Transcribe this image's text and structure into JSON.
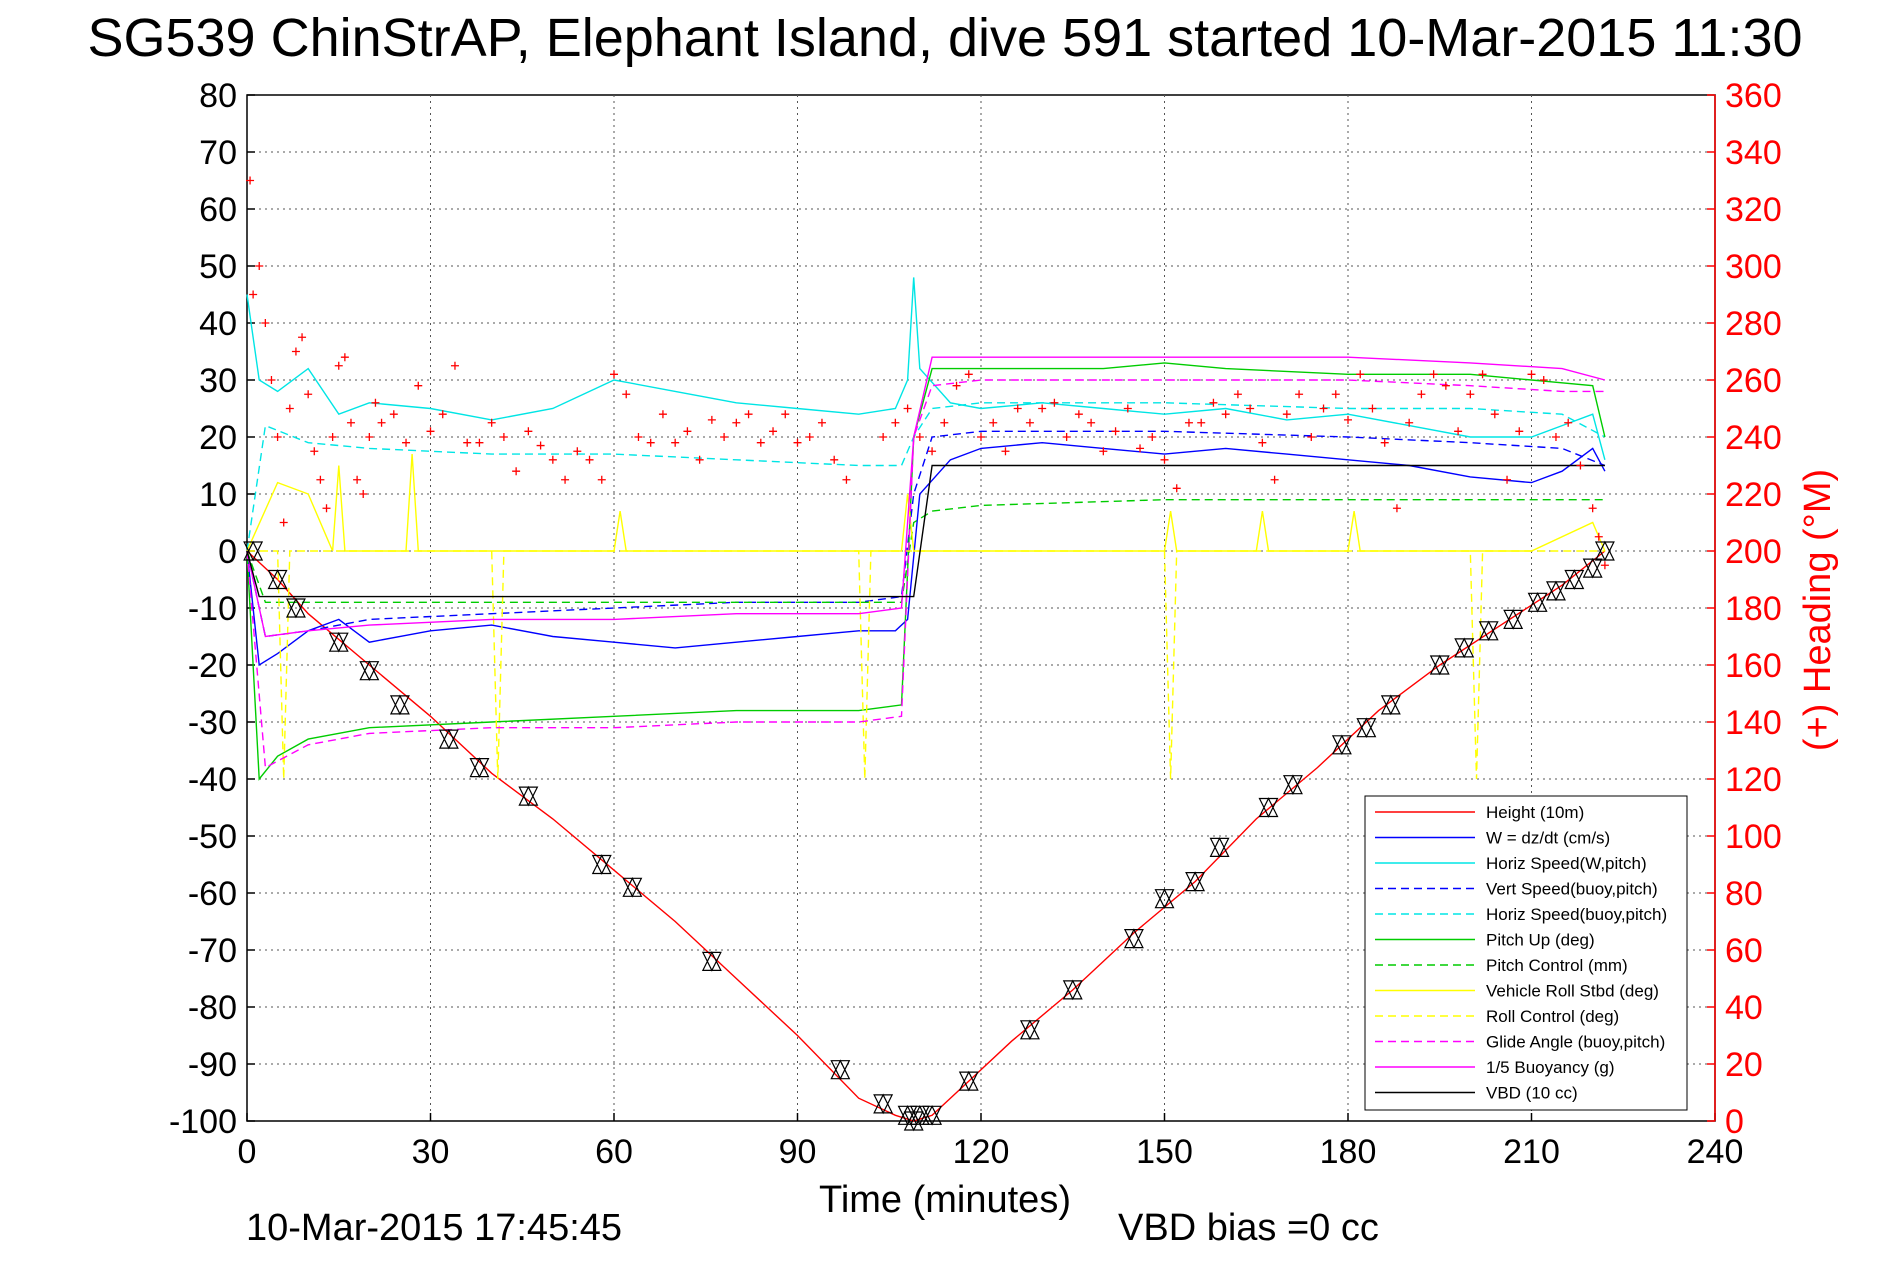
{
  "chart_data": {
    "type": "line",
    "title": "SG539 ChinStrAP, Elephant Island, dive 591 started 10-Mar-2015 11:30",
    "xlabel": "Time (minutes)",
    "ylabel": "",
    "ylabel_right": "(+) Heading (°M)",
    "xlim": [
      0,
      240
    ],
    "ylim": [
      -100,
      80
    ],
    "ylim_right": [
      0,
      360
    ],
    "x_ticks": [
      "0",
      "30",
      "60",
      "90",
      "120",
      "150",
      "180",
      "210",
      "240"
    ],
    "y_ticks": [
      "80",
      "70",
      "60",
      "50",
      "40",
      "30",
      "20",
      "10",
      "0",
      "-10",
      "-20",
      "-30",
      "-40",
      "-50",
      "-60",
      "-70",
      "-80",
      "-90",
      "-100"
    ],
    "y_ticks_right": [
      "360",
      "340",
      "320",
      "300",
      "280",
      "260",
      "240",
      "220",
      "200",
      "180",
      "160",
      "140",
      "120",
      "100",
      "80",
      "60",
      "40",
      "20",
      "0"
    ],
    "grid": true,
    "legend_position": "bottom-right",
    "footer_left": "10-Mar-2015 17:45:45",
    "footer_right": "VBD bias =0 cc",
    "series": [
      {
        "name": "Height (10m)",
        "color": "#ff0000",
        "style": "solid",
        "x": [
          0,
          5,
          10,
          20,
          30,
          40,
          50,
          60,
          70,
          80,
          90,
          100,
          106,
          109,
          112,
          118,
          125,
          135,
          145,
          155,
          165,
          175,
          185,
          195,
          205,
          215,
          222
        ],
        "y": [
          0,
          -5,
          -11,
          -20,
          -29,
          -39,
          -47,
          -56,
          -65,
          -75,
          -85,
          -96,
          -99,
          -100,
          -99,
          -93,
          -86,
          -77,
          -67,
          -58,
          -47,
          -38,
          -28,
          -20,
          -13,
          -6,
          0
        ]
      },
      {
        "name": "W = dz/dt (cm/s)",
        "color": "#0000ff",
        "style": "solid",
        "x": [
          0,
          2,
          5,
          10,
          15,
          20,
          30,
          40,
          50,
          60,
          70,
          80,
          90,
          100,
          106,
          108,
          110,
          115,
          120,
          130,
          140,
          150,
          160,
          170,
          180,
          190,
          200,
          210,
          215,
          220,
          222
        ],
        "y": [
          0,
          -20,
          -18,
          -14,
          -12,
          -16,
          -14,
          -13,
          -15,
          -16,
          -17,
          -16,
          -15,
          -14,
          -14,
          -12,
          10,
          16,
          18,
          19,
          18,
          17,
          18,
          17,
          16,
          15,
          13,
          12,
          14,
          18,
          14
        ]
      },
      {
        "name": "Horiz Speed(W,pitch)",
        "color": "#00e5e5",
        "style": "solid",
        "x": [
          0,
          2,
          5,
          10,
          15,
          20,
          30,
          40,
          50,
          60,
          70,
          80,
          90,
          100,
          106,
          108,
          109,
          110,
          115,
          120,
          130,
          140,
          150,
          160,
          170,
          180,
          190,
          200,
          210,
          215,
          220,
          222
        ],
        "y": [
          45,
          30,
          28,
          32,
          24,
          26,
          25,
          23,
          25,
          30,
          28,
          26,
          25,
          24,
          25,
          30,
          48,
          32,
          26,
          25,
          26,
          25,
          24,
          25,
          23,
          24,
          22,
          20,
          20,
          22,
          24,
          16
        ]
      },
      {
        "name": "Vert Speed(buoy,pitch)",
        "color": "#0000ff",
        "style": "dashed",
        "x": [
          0,
          3,
          10,
          20,
          40,
          60,
          80,
          100,
          107,
          109,
          112,
          120,
          150,
          180,
          200,
          215,
          222
        ],
        "y": [
          0,
          -15,
          -14,
          -12,
          -11,
          -10,
          -9,
          -9,
          -8,
          10,
          20,
          21,
          21,
          20,
          19,
          18,
          15
        ]
      },
      {
        "name": "Horiz Speed(buoy,pitch)",
        "color": "#00e5e5",
        "style": "dashed",
        "x": [
          0,
          3,
          10,
          20,
          40,
          60,
          80,
          100,
          107,
          109,
          112,
          120,
          150,
          180,
          200,
          215,
          222
        ],
        "y": [
          0,
          22,
          19,
          18,
          17,
          17,
          16,
          15,
          15,
          20,
          25,
          26,
          26,
          25,
          25,
          24,
          20
        ]
      },
      {
        "name": "Pitch Up (deg)",
        "color": "#00cc00",
        "style": "solid",
        "x": [
          0,
          2,
          5,
          10,
          20,
          40,
          60,
          80,
          100,
          107,
          109,
          112,
          120,
          140,
          150,
          160,
          180,
          200,
          210,
          220,
          222
        ],
        "y": [
          0,
          -40,
          -36,
          -33,
          -31,
          -30,
          -29,
          -28,
          -28,
          -27,
          20,
          32,
          32,
          32,
          33,
          32,
          31,
          31,
          30,
          29,
          20
        ]
      },
      {
        "name": "Pitch Control (mm)",
        "color": "#00cc00",
        "style": "dashed",
        "x": [
          0,
          3,
          10,
          40,
          80,
          107,
          109,
          112,
          120,
          150,
          180,
          210,
          222
        ],
        "y": [
          0,
          -9,
          -9,
          -9,
          -9,
          -9,
          5,
          7,
          8,
          9,
          9,
          9,
          9
        ]
      },
      {
        "name": "Vehicle Roll Stbd (deg)",
        "color": "#ffff00",
        "style": "solid",
        "x": [
          0,
          5,
          10,
          14,
          15,
          16,
          20,
          26,
          27,
          28,
          40,
          60,
          61,
          62,
          80,
          107,
          108,
          109,
          110,
          150,
          151,
          152,
          165,
          166,
          167,
          180,
          181,
          182,
          210,
          220,
          222
        ],
        "y": [
          0,
          12,
          10,
          0,
          15,
          0,
          0,
          0,
          17,
          0,
          0,
          0,
          7,
          0,
          0,
          0,
          10,
          0,
          0,
          0,
          7,
          0,
          0,
          7,
          0,
          0,
          7,
          0,
          0,
          5,
          0
        ]
      },
      {
        "name": "Roll Control (deg)",
        "color": "#ffff00",
        "style": "dashed",
        "x": [
          0,
          5,
          6,
          7,
          20,
          40,
          41,
          42,
          100,
          101,
          102,
          150,
          151,
          152,
          200,
          201,
          202,
          222
        ],
        "y": [
          0,
          0,
          -40,
          0,
          0,
          0,
          -40,
          0,
          0,
          -40,
          0,
          0,
          -40,
          0,
          0,
          -40,
          0,
          0
        ]
      },
      {
        "name": "Glide Angle (buoy,pitch)",
        "color": "#ff00ff",
        "style": "dashed",
        "x": [
          0,
          3,
          10,
          20,
          40,
          60,
          80,
          100,
          107,
          109,
          112,
          120,
          150,
          180,
          200,
          215,
          222
        ],
        "y": [
          0,
          -38,
          -34,
          -32,
          -31,
          -31,
          -30,
          -30,
          -29,
          20,
          29,
          30,
          30,
          30,
          29,
          28,
          28
        ]
      },
      {
        "name": "1/5 Buoyancy (g)",
        "color": "#ff00ff",
        "style": "solid",
        "x": [
          0,
          3,
          10,
          20,
          40,
          60,
          80,
          100,
          107,
          109,
          112,
          120,
          150,
          180,
          200,
          215,
          222
        ],
        "y": [
          0,
          -15,
          -14,
          -13,
          -12,
          -12,
          -11,
          -11,
          -10,
          20,
          34,
          34,
          34,
          34,
          33,
          32,
          30
        ]
      },
      {
        "name": "VBD (10 cc)",
        "color": "#000000",
        "style": "solid",
        "x": [
          0,
          2,
          107,
          109,
          112,
          222
        ],
        "y": [
          0,
          -8,
          -8,
          -8,
          15,
          15
        ]
      }
    ],
    "heading": {
      "color": "#ff0000",
      "marker": "+",
      "x": [
        0.5,
        1,
        2,
        3,
        4,
        5,
        6,
        7,
        8,
        9,
        10,
        11,
        12,
        13,
        14,
        15,
        16,
        17,
        18,
        19,
        20,
        21,
        22,
        24,
        26,
        28,
        30,
        32,
        34,
        36,
        38,
        40,
        42,
        44,
        46,
        48,
        50,
        52,
        54,
        56,
        58,
        60,
        62,
        64,
        66,
        68,
        70,
        72,
        74,
        76,
        78,
        80,
        82,
        84,
        86,
        88,
        90,
        92,
        94,
        96,
        98,
        104,
        106,
        108,
        110,
        112,
        114,
        116,
        118,
        120,
        122,
        124,
        126,
        128,
        130,
        132,
        134,
        136,
        138,
        140,
        142,
        144,
        146,
        148,
        150,
        152,
        154,
        156,
        158,
        160,
        162,
        164,
        166,
        168,
        170,
        172,
        174,
        176,
        178,
        180,
        182,
        184,
        186,
        188,
        190,
        192,
        194,
        196,
        198,
        200,
        202,
        204,
        206,
        208,
        210,
        212,
        214,
        216,
        218,
        220,
        221,
        222
      ],
      "y": [
        330,
        290,
        300,
        280,
        260,
        240,
        210,
        250,
        270,
        275,
        255,
        235,
        225,
        215,
        240,
        265,
        268,
        245,
        225,
        220,
        240,
        252,
        245,
        248,
        238,
        258,
        242,
        248,
        265,
        238,
        238,
        245,
        240,
        228,
        242,
        237,
        232,
        225,
        235,
        232,
        225,
        262,
        255,
        240,
        238,
        248,
        238,
        242,
        232,
        246,
        240,
        245,
        248,
        238,
        242,
        248,
        238,
        240,
        245,
        232,
        225,
        240,
        245,
        250,
        240,
        235,
        245,
        258,
        262,
        240,
        245,
        235,
        250,
        245,
        250,
        252,
        240,
        248,
        245,
        235,
        242,
        250,
        236,
        240,
        232,
        222,
        245,
        245,
        252,
        248,
        255,
        250,
        238,
        225,
        248,
        255,
        240,
        250,
        255,
        246,
        262,
        250,
        238,
        215,
        245,
        255,
        262,
        258,
        242,
        255,
        262,
        248,
        225,
        242,
        262,
        260,
        240,
        245,
        230,
        215,
        205,
        195
      ]
    },
    "markers": {
      "color": "#000000",
      "marker": "triangles",
      "x": [
        1,
        5,
        8,
        15,
        20,
        25,
        33,
        38,
        46,
        58,
        63,
        76,
        97,
        104,
        108,
        109,
        110,
        112,
        118,
        128,
        135,
        145,
        150,
        155,
        159,
        167,
        171,
        179,
        183,
        187,
        195,
        199,
        203,
        207,
        211,
        214,
        217,
        220,
        222
      ],
      "y": [
        0,
        -5,
        -10,
        -16,
        -21,
        -27,
        -33,
        -38,
        -43,
        -55,
        -59,
        -72,
        -91,
        -97,
        -99,
        -100,
        -99,
        -99,
        -93,
        -84,
        -77,
        -68,
        -61,
        -58,
        -52,
        -45,
        -41,
        -34,
        -31,
        -27,
        -20,
        -17,
        -14,
        -12,
        -9,
        -7,
        -5,
        -3,
        0
      ]
    }
  }
}
